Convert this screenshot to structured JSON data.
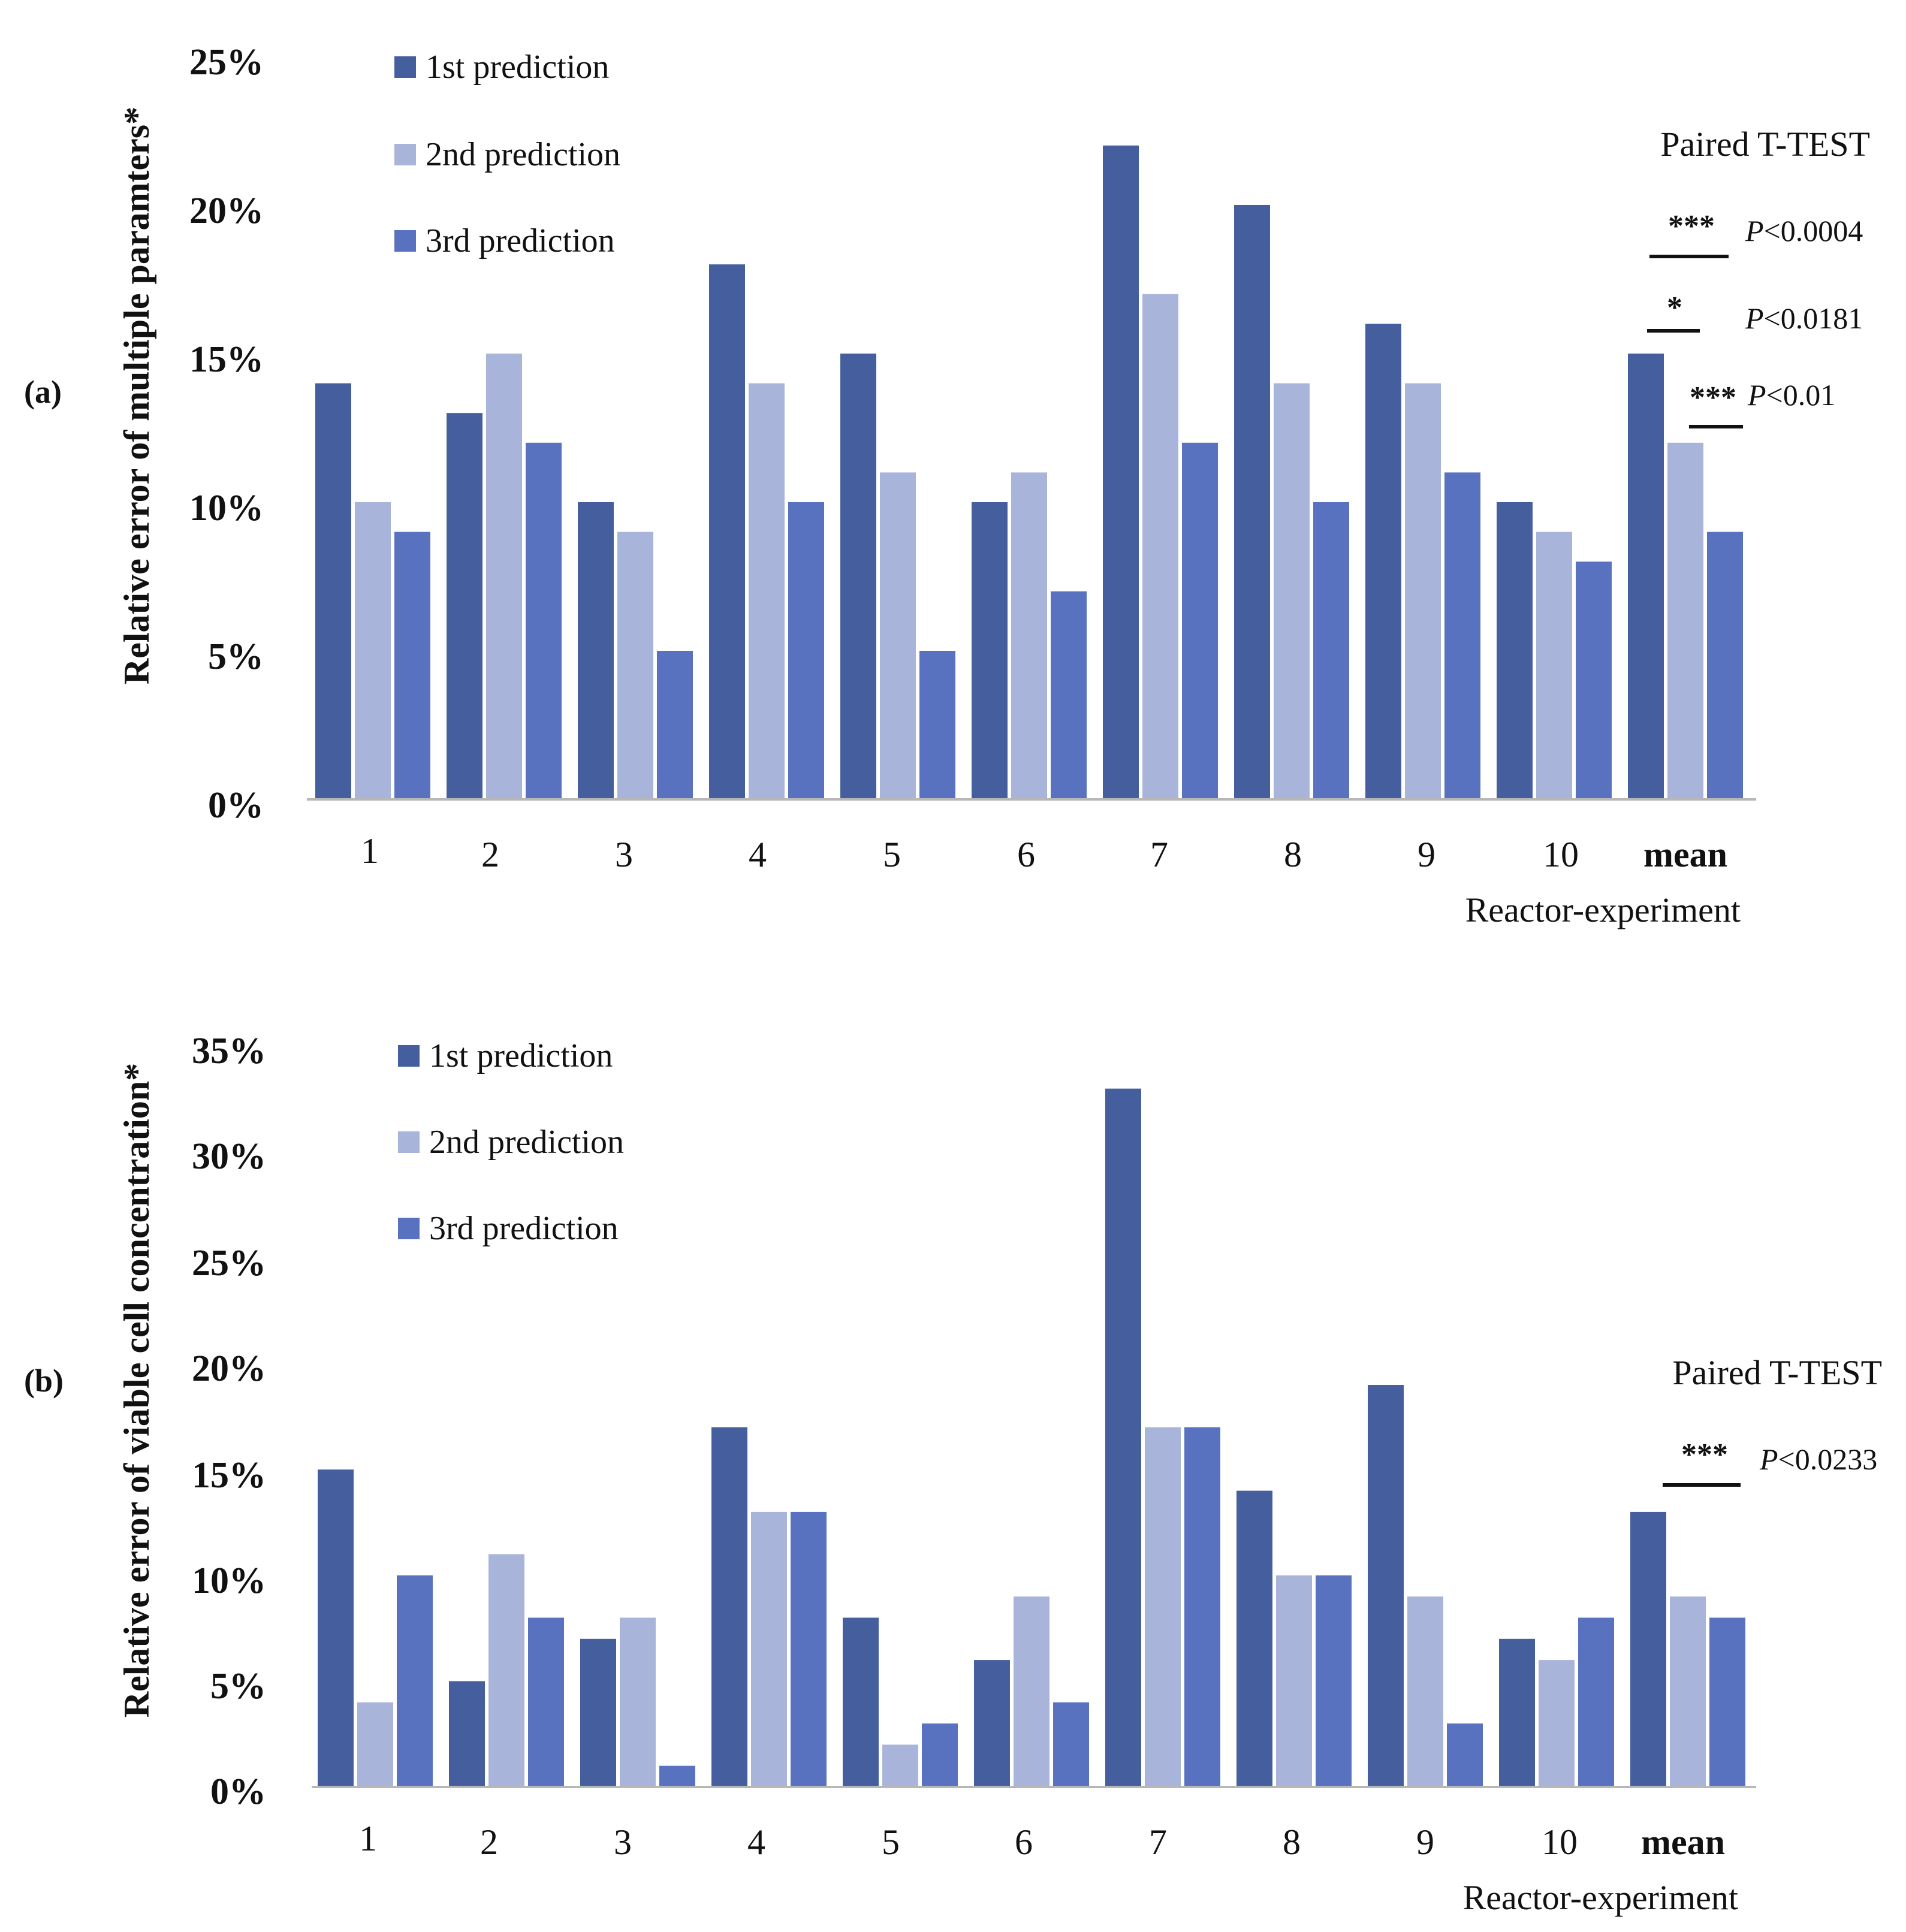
{
  "colors": {
    "first": "#455e9e",
    "second": "#a9b4da",
    "third": "#5872c0",
    "axis": "#b7b7b7",
    "text": "#111111"
  },
  "chart_data": [
    {
      "type": "bar",
      "panel_label": "(a)",
      "categories": [
        "1",
        "2",
        "3",
        "4",
        "5",
        "6",
        "7",
        "8",
        "9",
        "10",
        "mean"
      ],
      "series": [
        {
          "name": "1st prediction",
          "values": [
            14,
            13,
            10,
            18,
            15,
            10,
            22,
            20,
            16,
            10,
            15
          ]
        },
        {
          "name": "2nd prediction",
          "values": [
            10,
            15,
            9,
            14,
            11,
            11,
            17,
            14,
            14,
            9,
            12
          ]
        },
        {
          "name": "3rd prediction",
          "values": [
            9,
            12,
            5,
            10,
            5,
            7,
            12,
            10,
            11,
            8,
            9
          ]
        }
      ],
      "ylim": [
        0,
        25
      ],
      "yticks": [
        "0%",
        "5%",
        "10%",
        "15%",
        "20%",
        "25%"
      ],
      "ylabel": "Relative error of multiple paramters*",
      "xlabel": "Reactor-experiment",
      "legend_position": "top-left",
      "stats": {
        "title": "Paired T-TEST",
        "items": [
          {
            "stars": "***",
            "p_italic": "P",
            "p_rest": "<0.0004"
          },
          {
            "stars": "*",
            "p_italic": "P",
            "p_rest": "<0.0181"
          },
          {
            "stars": "***",
            "p_italic": "P",
            "p_rest": "<0.01"
          }
        ]
      }
    },
    {
      "type": "bar",
      "panel_label": "(b)",
      "categories": [
        "1",
        "2",
        "3",
        "4",
        "5",
        "6",
        "7",
        "8",
        "9",
        "10",
        "mean"
      ],
      "series": [
        {
          "name": "1st prediction",
          "values": [
            15,
            5,
            7,
            17,
            8,
            6,
            33,
            14,
            19,
            7,
            13
          ]
        },
        {
          "name": "2nd prediction",
          "values": [
            4,
            11,
            8,
            13,
            2,
            9,
            17,
            10,
            9,
            6,
            9
          ]
        },
        {
          "name": "3rd prediction",
          "values": [
            10,
            8,
            1,
            13,
            3,
            4,
            17,
            10,
            3,
            8,
            8
          ]
        }
      ],
      "ylim": [
        0,
        35
      ],
      "yticks": [
        "0%",
        "5%",
        "10%",
        "15%",
        "20%",
        "25%",
        "30%",
        "35%"
      ],
      "ylabel": "Relative error of viable cell concentration*",
      "xlabel": "Reactor-experiment",
      "legend_position": "top-left",
      "stats": {
        "title": "Paired T-TEST",
        "items": [
          {
            "stars": "***",
            "p_italic": "P",
            "p_rest": "<0.0233"
          }
        ]
      }
    }
  ]
}
